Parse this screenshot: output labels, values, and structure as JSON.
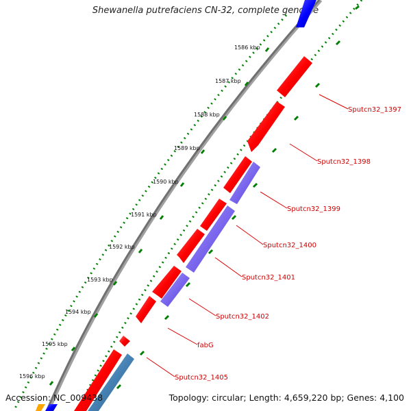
{
  "title": "Shewanella putrefaciens CN-32, complete genome",
  "accession": "Accession: NC_009438",
  "summary": "Topology: circular; Length: 4,659,220 bp; Genes: 4,100",
  "ticks": [
    "1586 kbp",
    "1587 kbp",
    "1588 kbp",
    "1589 kbp",
    "1590 kbp",
    "1591 kbp",
    "1592 kbp",
    "1593 kbp",
    "1594 kbp",
    "1595 kbp",
    "1596 kbp"
  ],
  "genes": [
    "Sputcn32_1397",
    "Sputcn32_1398",
    "Sputcn32_1399",
    "Sputcn32_1400",
    "Sputcn32_1401",
    "Sputcn32_1402",
    "fabG",
    "Sputcn32_1405"
  ],
  "colors": {
    "forward": "#ff0000",
    "reverse": "#7b68ee",
    "blue": "#0000ff",
    "steel": "#4682b4",
    "orange": "#ffa500",
    "backbone": "#808080",
    "tick_dots": "#008000",
    "label": "#cc0000"
  }
}
